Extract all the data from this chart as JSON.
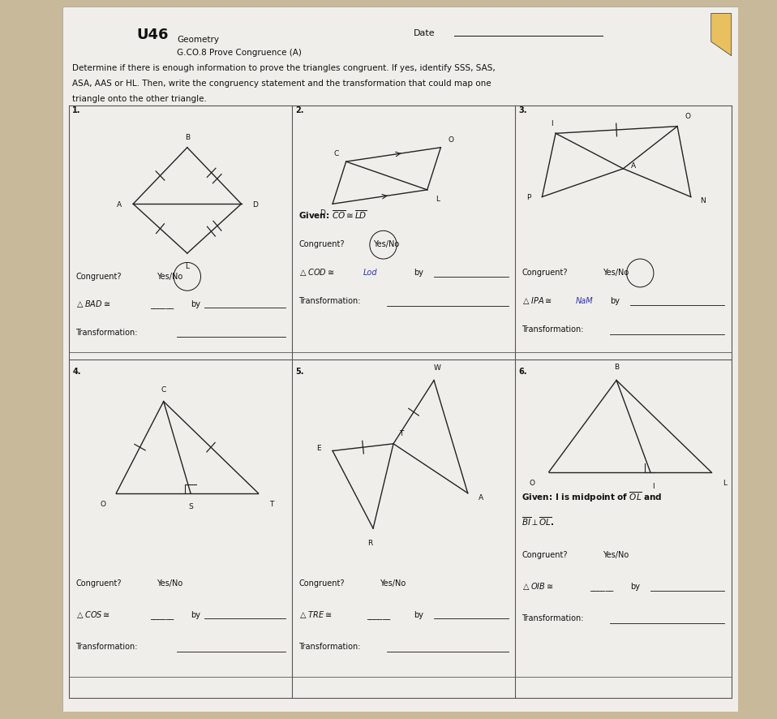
{
  "bg_color": "#c8b99a",
  "paper_color": "#f0eeea",
  "title": "U46",
  "subject": "Geometry",
  "course": "G.CO.8 Prove Congruence (A)",
  "date_label": "Date",
  "instructions_1": "Determine if there is enough information to prove the triangles congruent. If yes, identify SSS, SAS,",
  "instructions_2": "ASA, AAS or HL. Then, write the congruency statement and the transformation that could map one",
  "instructions_3": "triangle onto the other triangle.",
  "cell_line_color": "#555555",
  "text_color": "#111111",
  "fig_line_color": "#222222",
  "pencil_color": "#d4a050"
}
